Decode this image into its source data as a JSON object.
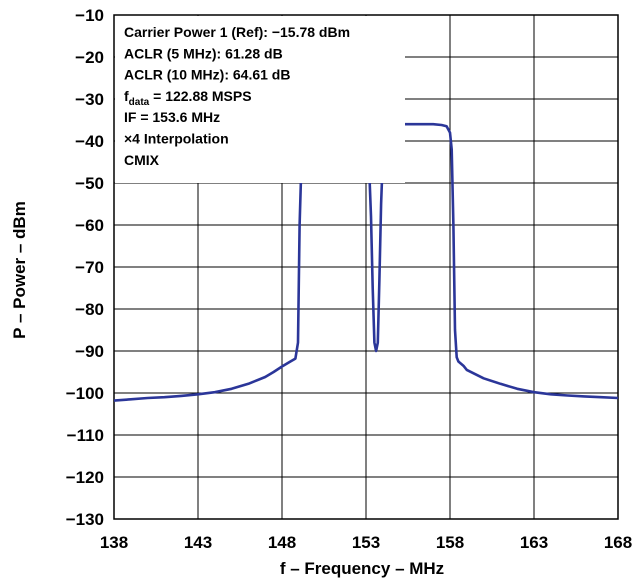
{
  "chart_data": {
    "type": "line",
    "title": "",
    "xlabel": "f – Frequency – MHz",
    "ylabel": "P – Power – dBm",
    "xlim": [
      138,
      168
    ],
    "ylim": [
      -130,
      -10
    ],
    "xticks": [
      138,
      143,
      148,
      153,
      158,
      163,
      168
    ],
    "xtick_labels": [
      "138",
      "143",
      "148",
      "153",
      "158",
      "163",
      "168"
    ],
    "yticks": [
      -10,
      -20,
      -30,
      -40,
      -50,
      -60,
      -70,
      -80,
      -90,
      -100,
      -110,
      -120,
      -130
    ],
    "ytick_labels": [
      "−10",
      "−20",
      "−30",
      "−40",
      "−50",
      "−60",
      "−70",
      "−80",
      "−90",
      "−100",
      "−110",
      "−120",
      "−130"
    ],
    "grid": true,
    "line_color": "#2b3699",
    "annotations": [
      {
        "text": "Carrier Power 1 (Ref): −15.78 dBm"
      },
      {
        "text": "ACLR (5 MHz): 61.28 dB"
      },
      {
        "text": "ACLR (10 MHz): 64.61 dB"
      },
      {
        "text": "f",
        "sub": "data",
        "suffix": " = 122.88 MSPS"
      },
      {
        "text": "IF = 153.6 MHz"
      },
      {
        "text": "×4 Interpolation"
      },
      {
        "text": "CMIX"
      }
    ],
    "series": [
      {
        "x": [
          138,
          139,
          140,
          141,
          142,
          143,
          144,
          145,
          146,
          147,
          147.5,
          148,
          148.5,
          148.8,
          148.95,
          149.05,
          149.2,
          149.5,
          150,
          151,
          152,
          152.5,
          152.8,
          153.0,
          153.1,
          153.2,
          153.3,
          153.4,
          153.5,
          153.6,
          153.7,
          153.8,
          153.9,
          154.0,
          154.1,
          154.3,
          154.7,
          155,
          156,
          157,
          157.5,
          157.8,
          158.0,
          158.1,
          158.2,
          158.3,
          158.4,
          158.5,
          158.8,
          159,
          160,
          161,
          162,
          163,
          164,
          165,
          166,
          167,
          168
        ],
        "y": [
          -101.8,
          -101.5,
          -101.2,
          -101.0,
          -100.7,
          -100.3,
          -99.8,
          -99.0,
          -97.8,
          -96.2,
          -95.0,
          -93.7,
          -92.5,
          -91.8,
          -88,
          -60,
          -39,
          -36.5,
          -36.0,
          -36.0,
          -36.0,
          -36.2,
          -37,
          -39,
          -42,
          -48,
          -58,
          -75,
          -88,
          -90,
          -88,
          -73,
          -55,
          -44,
          -40,
          -37.5,
          -36.5,
          -36.0,
          -36.0,
          -36.0,
          -36.2,
          -36.5,
          -38,
          -42,
          -60,
          -85,
          -91.5,
          -92.5,
          -93.5,
          -94.5,
          -96.5,
          -97.8,
          -99.0,
          -99.8,
          -100.3,
          -100.6,
          -100.8,
          -101.0,
          -101.2
        ]
      }
    ]
  }
}
